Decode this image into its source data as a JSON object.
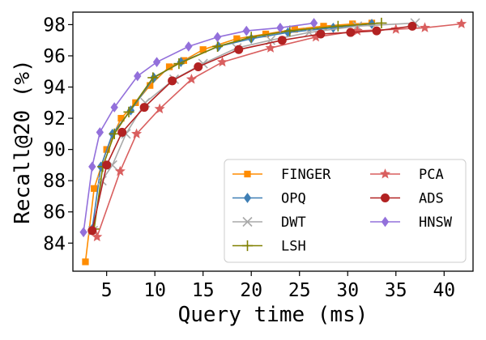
{
  "chart_data": {
    "type": "line",
    "title": "",
    "xlabel": "Query time (ms)",
    "ylabel": "Recall@20 (%)",
    "xlim": [
      1.5,
      43
    ],
    "ylim": [
      82.2,
      98.8
    ],
    "xticks": [
      5,
      10,
      15,
      20,
      25,
      30,
      35,
      40
    ],
    "yticks": [
      84,
      86,
      88,
      90,
      92,
      94,
      96,
      98
    ],
    "legend_position": "lower-right",
    "series": [
      {
        "name": "FINGER",
        "color": "#ff8c00",
        "marker": "square",
        "points": [
          [
            2.8,
            82.8
          ],
          [
            3.7,
            87.5
          ],
          [
            5.0,
            90.0
          ],
          [
            6.5,
            92.0
          ],
          [
            8.0,
            93.0
          ],
          [
            9.5,
            94.1
          ],
          [
            11.5,
            95.3
          ],
          [
            13.0,
            95.7
          ],
          [
            15.0,
            96.4
          ],
          [
            18.5,
            97.1
          ],
          [
            21.5,
            97.4
          ],
          [
            24.5,
            97.7
          ],
          [
            27.5,
            97.9
          ],
          [
            30.5,
            98.05
          ],
          [
            32.5,
            98.1
          ]
        ]
      },
      {
        "name": "OPQ",
        "color": "#3f7fb5",
        "marker": "diamond",
        "points": [
          [
            3.5,
            84.9
          ],
          [
            4.4,
            88.9
          ],
          [
            5.6,
            91.0
          ],
          [
            7.5,
            92.5
          ],
          [
            9.9,
            94.6
          ],
          [
            12.7,
            95.6
          ],
          [
            16.6,
            96.6
          ],
          [
            20.0,
            97.1
          ],
          [
            23.8,
            97.5
          ],
          [
            28.5,
            97.8
          ],
          [
            32.5,
            98.05
          ]
        ]
      },
      {
        "name": "DWT",
        "color": "#a9a9a9",
        "marker": "x",
        "points": [
          [
            3.6,
            84.8
          ],
          [
            4.5,
            88.0
          ],
          [
            5.6,
            89.0
          ],
          [
            7.0,
            91.0
          ],
          [
            9.0,
            93.0
          ],
          [
            12.0,
            94.5
          ],
          [
            15.0,
            95.5
          ],
          [
            18.5,
            96.5
          ],
          [
            22.0,
            97.0
          ],
          [
            26.0,
            97.5
          ],
          [
            31.0,
            97.9
          ],
          [
            37.0,
            98.1
          ]
        ]
      },
      {
        "name": "LSH",
        "color": "#808000",
        "marker": "plus",
        "points": [
          [
            3.7,
            84.9
          ],
          [
            4.6,
            88.9
          ],
          [
            5.8,
            91.0
          ],
          [
            7.3,
            92.4
          ],
          [
            9.8,
            94.6
          ],
          [
            12.5,
            95.5
          ],
          [
            16.5,
            96.6
          ],
          [
            20.0,
            97.2
          ],
          [
            24.0,
            97.6
          ],
          [
            29.0,
            97.9
          ],
          [
            33.5,
            98.1
          ]
        ]
      },
      {
        "name": "PCA",
        "color": "#d95f5f",
        "marker": "star",
        "points": [
          [
            4.0,
            84.4
          ],
          [
            6.4,
            88.6
          ],
          [
            8.1,
            91.0
          ],
          [
            10.5,
            92.6
          ],
          [
            13.8,
            94.5
          ],
          [
            17.0,
            95.6
          ],
          [
            22.0,
            96.5
          ],
          [
            26.7,
            97.2
          ],
          [
            31.0,
            97.6
          ],
          [
            35.0,
            97.7
          ],
          [
            38.0,
            97.8
          ],
          [
            41.8,
            98.05
          ]
        ]
      },
      {
        "name": "ADS",
        "color": "#b22222",
        "marker": "circle",
        "points": [
          [
            3.5,
            84.8
          ],
          [
            5.0,
            89.0
          ],
          [
            6.6,
            91.1
          ],
          [
            8.9,
            92.7
          ],
          [
            11.8,
            94.4
          ],
          [
            14.5,
            95.3
          ],
          [
            18.7,
            96.4
          ],
          [
            23.2,
            97.0
          ],
          [
            27.2,
            97.4
          ],
          [
            30.3,
            97.5
          ],
          [
            33.0,
            97.6
          ],
          [
            36.7,
            97.9
          ]
        ]
      },
      {
        "name": "HNSW",
        "color": "#9370db",
        "marker": "diamond",
        "points": [
          [
            2.6,
            84.7
          ],
          [
            3.5,
            88.9
          ],
          [
            4.3,
            91.1
          ],
          [
            5.8,
            92.7
          ],
          [
            8.2,
            94.7
          ],
          [
            10.2,
            95.6
          ],
          [
            13.5,
            96.6
          ],
          [
            16.5,
            97.2
          ],
          [
            19.5,
            97.6
          ],
          [
            23.0,
            97.8
          ],
          [
            26.5,
            98.1
          ]
        ]
      }
    ]
  }
}
